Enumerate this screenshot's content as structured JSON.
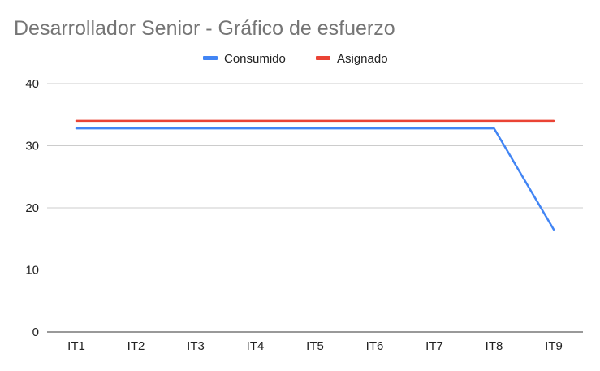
{
  "chart_data": {
    "type": "line",
    "title": "Desarrollador Senior - Gráfico de esfuerzo",
    "xlabel": "",
    "ylabel": "",
    "categories": [
      "IT1",
      "IT2",
      "IT3",
      "IT4",
      "IT5",
      "IT6",
      "IT7",
      "IT8",
      "IT9"
    ],
    "ylim": [
      0,
      40
    ],
    "yticks": [
      "0",
      "10",
      "20",
      "30",
      "40"
    ],
    "grid": true,
    "legend_position": "top",
    "series": [
      {
        "name": "Consumido",
        "color": "#4285f4",
        "values": [
          32.8,
          32.8,
          32.8,
          32.8,
          32.8,
          32.8,
          32.8,
          32.8,
          16.5
        ]
      },
      {
        "name": "Asignado",
        "color": "#ea4335",
        "values": [
          34,
          34,
          34,
          34,
          34,
          34,
          34,
          34,
          34
        ]
      }
    ]
  }
}
